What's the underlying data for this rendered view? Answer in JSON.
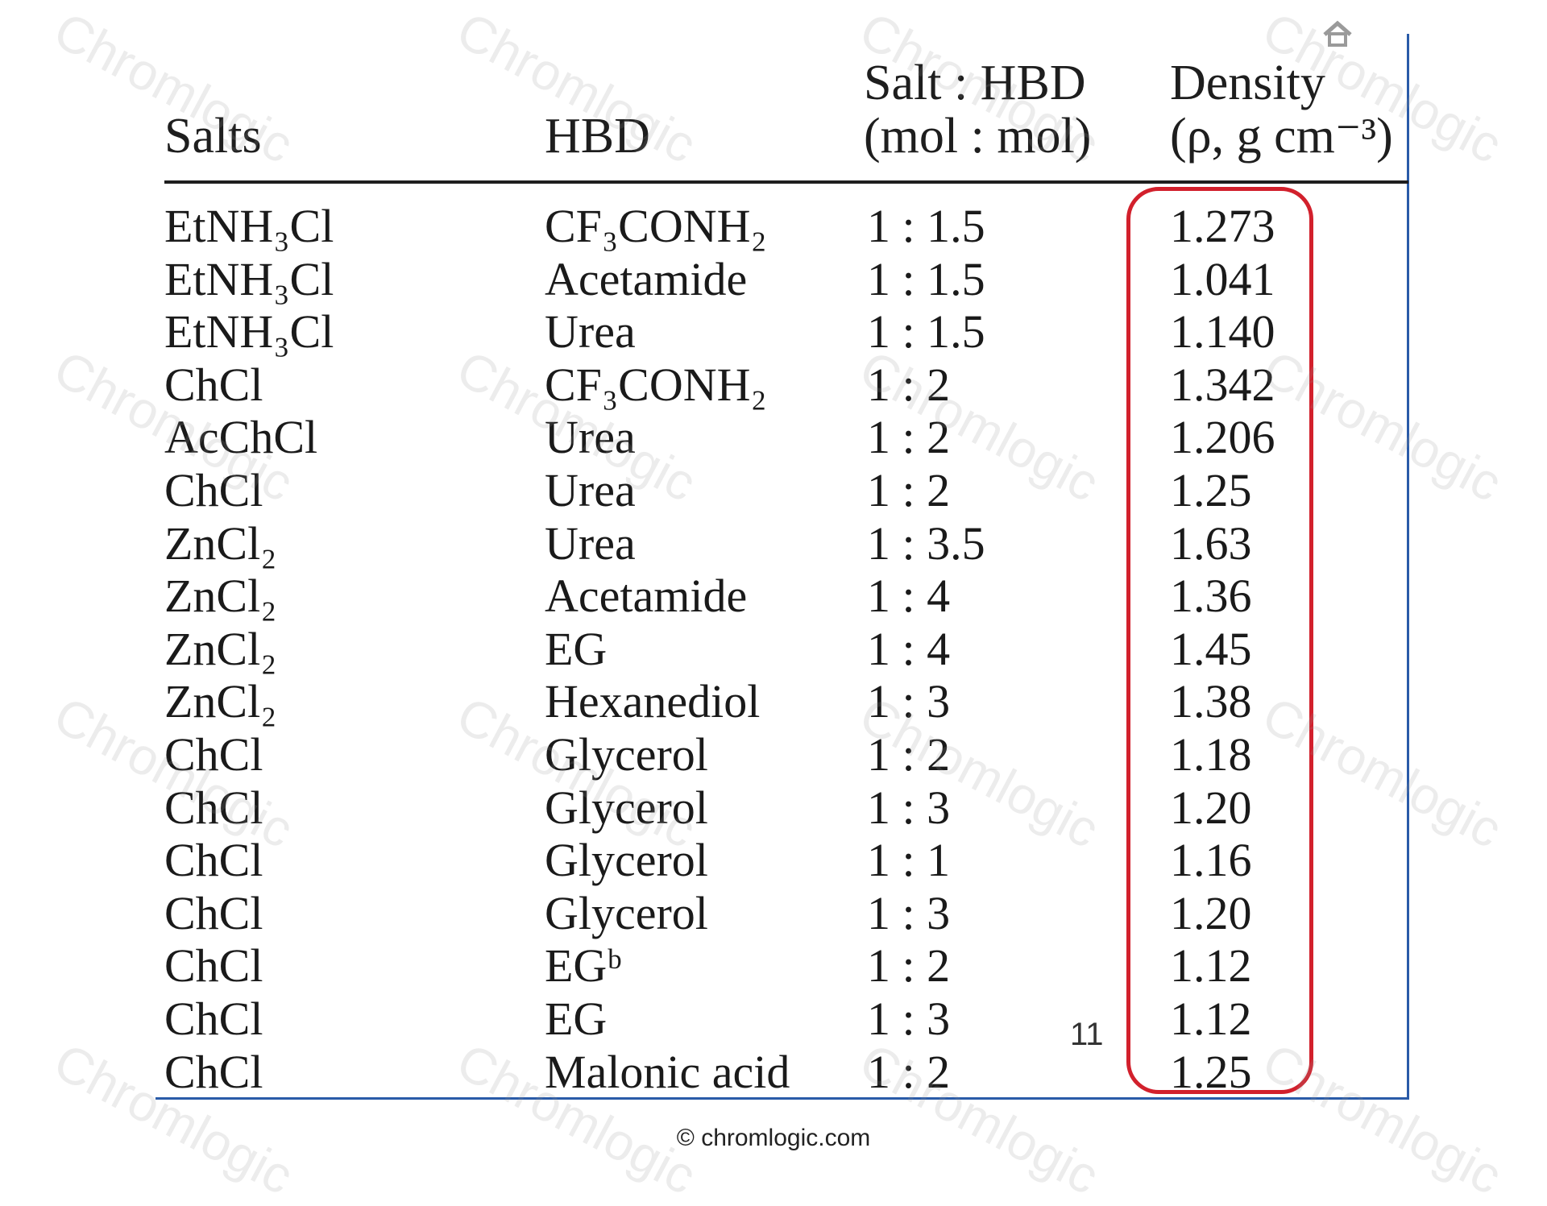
{
  "logo": {
    "text": "Chromlogic",
    "icon": "house-logo-icon"
  },
  "watermark": {
    "text": "Chromlogic"
  },
  "table": {
    "headers": {
      "salts": "Salts",
      "hbd": "HBD",
      "ratio_line1": "Salt : HBD",
      "ratio_line2": "(mol : mol)",
      "density_line1": "Density",
      "density_line2": "(ρ, g cm⁻³)"
    },
    "rows": [
      {
        "salt": "EtNH₃Cl",
        "hbd": "CF₃CONH₂",
        "ratio": "1 : 1.5",
        "density": "1.273"
      },
      {
        "salt": "EtNH₃Cl",
        "hbd": "Acetamide",
        "ratio": "1 : 1.5",
        "density": "1.041"
      },
      {
        "salt": "EtNH₃Cl",
        "hbd": "Urea",
        "ratio": "1 : 1.5",
        "density": "1.140"
      },
      {
        "salt": "ChCl",
        "hbd": "CF₃CONH₂",
        "ratio": "1 : 2",
        "density": "1.342"
      },
      {
        "salt": "AcChCl",
        "hbd": "Urea",
        "ratio": "1 : 2",
        "density": "1.206"
      },
      {
        "salt": "ChCl",
        "hbd": "Urea",
        "ratio": "1 : 2",
        "density": "1.25"
      },
      {
        "salt": "ZnCl₂",
        "hbd": "Urea",
        "ratio": "1 : 3.5",
        "density": "1.63"
      },
      {
        "salt": "ZnCl₂",
        "hbd": "Acetamide",
        "ratio": "1 : 4",
        "density": "1.36"
      },
      {
        "salt": "ZnCl₂",
        "hbd": "EG",
        "ratio": "1 : 4",
        "density": "1.45"
      },
      {
        "salt": "ZnCl₂",
        "hbd": "Hexanediol",
        "ratio": "1 : 3",
        "density": "1.38"
      },
      {
        "salt": "ChCl",
        "hbd": "Glycerol",
        "ratio": "1 : 2",
        "density": "1.18"
      },
      {
        "salt": "ChCl",
        "hbd": "Glycerol",
        "ratio": "1 : 3",
        "density": "1.20"
      },
      {
        "salt": "ChCl",
        "hbd": "Glycerol",
        "ratio": "1 : 1",
        "density": "1.16"
      },
      {
        "salt": "ChCl",
        "hbd": "Glycerol",
        "ratio": "1 : 3",
        "density": "1.20"
      },
      {
        "salt": "ChCl",
        "hbd": "EGᵇ",
        "ratio": "1 : 2",
        "density": "1.12"
      },
      {
        "salt": "ChCl",
        "hbd": "EG",
        "ratio": "1 : 3",
        "density": "1.12"
      },
      {
        "salt": "ChCl",
        "hbd": "Malonic acid",
        "ratio": "1 : 2",
        "density": "1.25"
      }
    ]
  },
  "slide_number": "11",
  "footer": "© chromlogic.com",
  "colors": {
    "highlight": "#d2202c",
    "frame": "#2a5ba8"
  }
}
